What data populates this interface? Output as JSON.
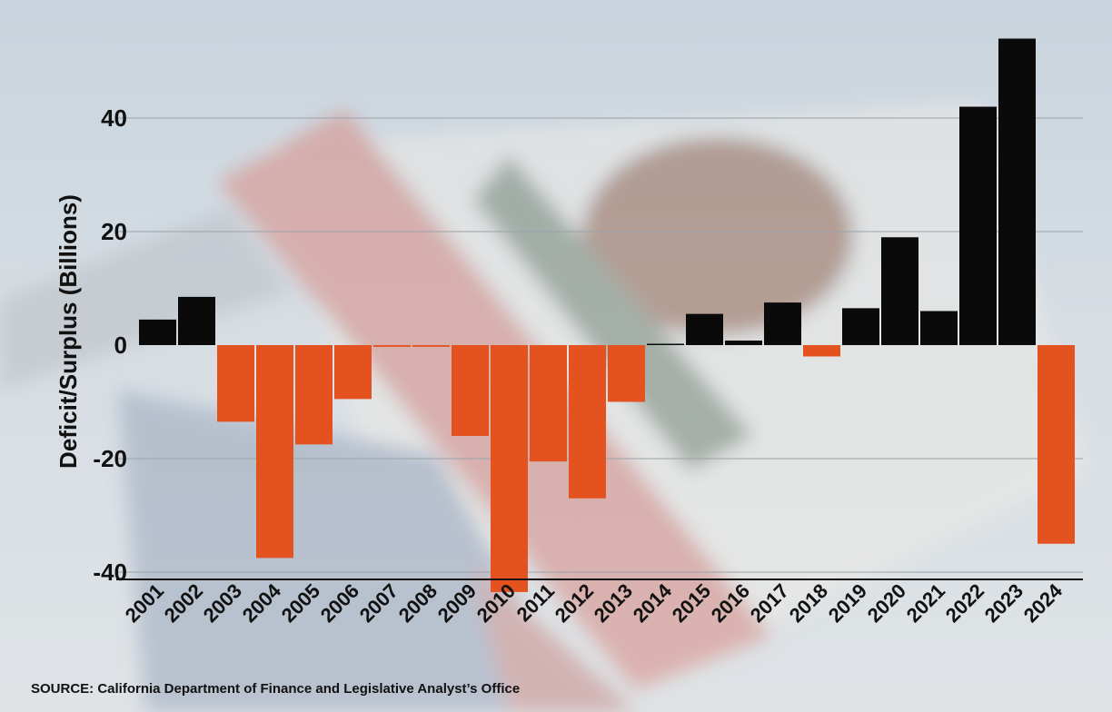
{
  "colors": {
    "surplus": "#0a0a0a",
    "deficit": "#e4521f",
    "grid": "#9aa3a8",
    "axis": "#111111"
  },
  "background_description_icon": "california-flag-photo",
  "chart_data": {
    "type": "bar",
    "categories": [
      "2001",
      "2002",
      "2003",
      "2004",
      "2005",
      "2006",
      "2007",
      "2008",
      "2009",
      "2010",
      "2011",
      "2012",
      "2013",
      "2014",
      "2015",
      "2016",
      "2017",
      "2018",
      "2019",
      "2020",
      "2021",
      "2022",
      "2023",
      "2024"
    ],
    "values": [
      4.5,
      8.5,
      -13.5,
      -37.5,
      -17.5,
      -9.5,
      -0.3,
      -0.3,
      -16,
      -43.5,
      -20.5,
      -27,
      -10,
      0,
      5.5,
      0.8,
      7.5,
      -2,
      6.5,
      19,
      6,
      42,
      54,
      -35
    ],
    "title": "",
    "xlabel": "",
    "ylabel": "Deficit/Surplus (Billions)",
    "yticks": [
      40,
      20,
      0,
      -20,
      -40
    ],
    "ylim": [
      -44,
      55
    ],
    "grid": true,
    "legend": "none"
  },
  "source_text": "SOURCE: California Department of Finance and Legislative Analyst’s Office"
}
